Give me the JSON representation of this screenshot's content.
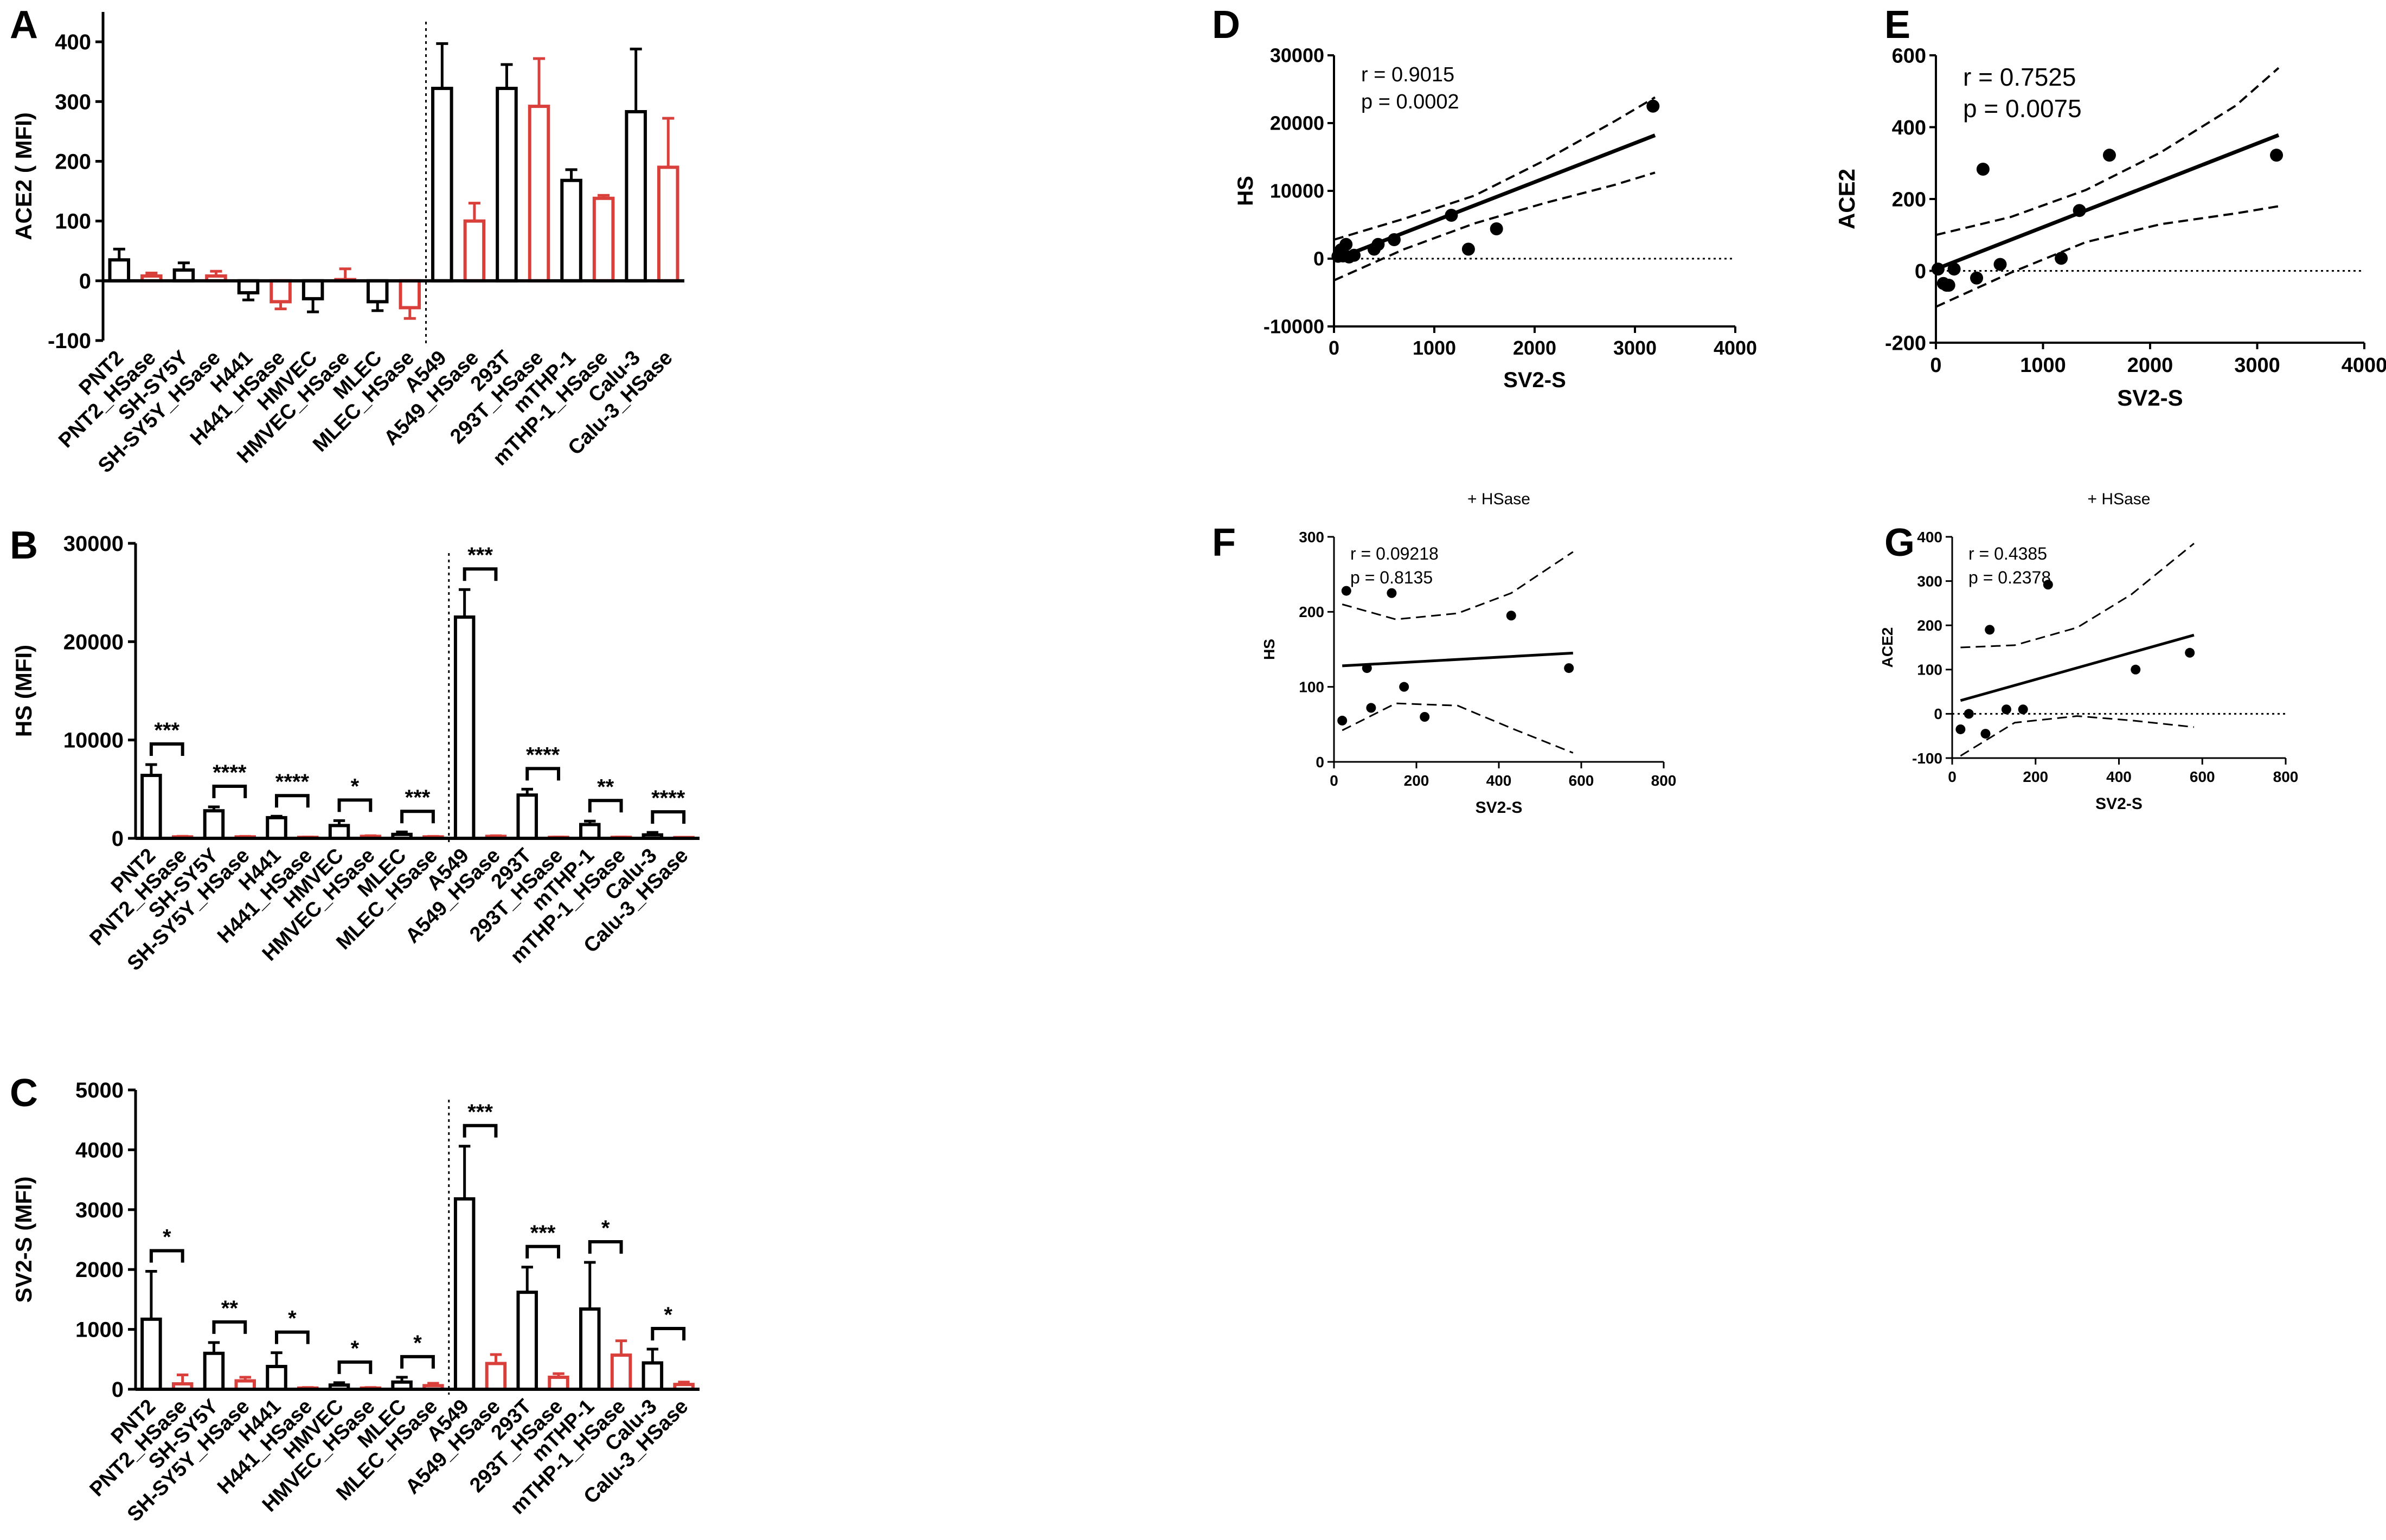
{
  "colors": {
    "control": "#000000",
    "hsase": "#d9403b"
  },
  "chart_data": [
    {
      "id": "A",
      "panel_label": "A",
      "type": "bar",
      "ylabel": "ACE2 ( MFI)",
      "ylim": [
        -100,
        450
      ],
      "yticks": [
        -100,
        0,
        100,
        200,
        300,
        400
      ],
      "divider_after_index": 9,
      "categories": [
        "PNT2",
        "PNT2_HSase",
        "SH-SY5Y",
        "SH-SY5Y_HSase",
        "H441",
        "H441_HSase",
        "HMVEC",
        "HMVEC_HSase",
        "MLEC",
        "MLEC_HSase",
        "A549",
        "A549_HSase",
        "293T",
        "293T_HSase",
        "mTHP-1",
        "mTHP-1_HSase",
        "Calu-3",
        "Calu-3_HSase"
      ],
      "values": [
        35,
        8,
        18,
        8,
        -20,
        -35,
        -30,
        2,
        -35,
        -45,
        322,
        100,
        322,
        292,
        168,
        138,
        283,
        190
      ],
      "errors": [
        18,
        5,
        12,
        8,
        12,
        12,
        22,
        18,
        15,
        18,
        75,
        30,
        40,
        80,
        18,
        5,
        105,
        82
      ],
      "significance": []
    },
    {
      "id": "B",
      "panel_label": "B",
      "type": "bar",
      "ylabel": "HS (MFI)",
      "ylim": [
        0,
        30000
      ],
      "yticks": [
        0,
        10000,
        20000,
        30000
      ],
      "divider_after_index": 9,
      "categories": [
        "PNT2",
        "PNT2_HSase",
        "SH-SY5Y",
        "SH-SY5Y_HSase",
        "H441",
        "H441_HSase",
        "HMVEC",
        "HMVEC_HSase",
        "MLEC",
        "MLEC_HSase",
        "A549",
        "A549_HSase",
        "293T",
        "293T_HSase",
        "mTHP-1",
        "mTHP-1_HSase",
        "Calu-3",
        "Calu-3_HSase"
      ],
      "values": [
        6400,
        150,
        2800,
        150,
        2100,
        100,
        1300,
        200,
        400,
        150,
        22500,
        200,
        4400,
        100,
        1400,
        100,
        350,
        80
      ],
      "errors": [
        1100,
        60,
        400,
        50,
        150,
        40,
        500,
        60,
        250,
        50,
        2800,
        60,
        600,
        40,
        350,
        40,
        250,
        30
      ],
      "significance": [
        {
          "pair": [
            0,
            1
          ],
          "label": "***"
        },
        {
          "pair": [
            2,
            3
          ],
          "label": "****"
        },
        {
          "pair": [
            4,
            5
          ],
          "label": "****"
        },
        {
          "pair": [
            6,
            7
          ],
          "label": "*"
        },
        {
          "pair": [
            8,
            9
          ],
          "label": "***"
        },
        {
          "pair": [
            10,
            11
          ],
          "label": "***"
        },
        {
          "pair": [
            12,
            13
          ],
          "label": "****"
        },
        {
          "pair": [
            14,
            15
          ],
          "label": "**"
        },
        {
          "pair": [
            16,
            17
          ],
          "label": "****"
        }
      ]
    },
    {
      "id": "C",
      "panel_label": "C",
      "type": "bar",
      "ylabel": "SV2-S (MFI)",
      "ylim": [
        0,
        5000
      ],
      "yticks": [
        0,
        1000,
        2000,
        3000,
        4000,
        5000
      ],
      "divider_after_index": 9,
      "categories": [
        "PNT2",
        "PNT2_HSase",
        "SH-SY5Y",
        "SH-SY5Y_HSase",
        "H441",
        "H441_HSase",
        "HMVEC",
        "HMVEC_HSase",
        "MLEC",
        "MLEC_HSase",
        "A549",
        "A549_HSase",
        "293T",
        "293T_HSase",
        "mTHP-1",
        "mTHP-1_HSase",
        "Calu-3",
        "Calu-3_HSase"
      ],
      "values": [
        1170,
        90,
        600,
        140,
        380,
        20,
        70,
        20,
        120,
        60,
        3180,
        430,
        1620,
        200,
        1340,
        570,
        440,
        80
      ],
      "errors": [
        800,
        150,
        180,
        60,
        230,
        10,
        40,
        10,
        80,
        40,
        880,
        150,
        420,
        60,
        780,
        240,
        230,
        40
      ],
      "significance": [
        {
          "pair": [
            0,
            1
          ],
          "label": "*"
        },
        {
          "pair": [
            2,
            3
          ],
          "label": "**"
        },
        {
          "pair": [
            4,
            5
          ],
          "label": "*"
        },
        {
          "pair": [
            6,
            7
          ],
          "label": "*"
        },
        {
          "pair": [
            8,
            9
          ],
          "label": "*"
        },
        {
          "pair": [
            10,
            11
          ],
          "label": "***"
        },
        {
          "pair": [
            12,
            13
          ],
          "label": "***"
        },
        {
          "pair": [
            14,
            15
          ],
          "label": "*"
        },
        {
          "pair": [
            16,
            17
          ],
          "label": "*"
        }
      ]
    },
    {
      "id": "D",
      "panel_label": "D",
      "type": "scatter",
      "title": "",
      "xlabel": "SV2-S",
      "ylabel": "HS",
      "xlim": [
        0,
        4000
      ],
      "ylim": [
        -10000,
        30000
      ],
      "xticks": [
        0,
        1000,
        2000,
        3000,
        4000
      ],
      "yticks": [
        -10000,
        0,
        10000,
        20000,
        30000
      ],
      "annot_r": "r = 0.9015",
      "annot_p": "p = 0.0002",
      "points": [
        [
          40,
          350
        ],
        [
          70,
          1300
        ],
        [
          90,
          400
        ],
        [
          120,
          2100
        ],
        [
          150,
          250
        ],
        [
          200,
          500
        ],
        [
          400,
          1400
        ],
        [
          440,
          2100
        ],
        [
          600,
          2800
        ],
        [
          1170,
          6400
        ],
        [
          1340,
          1400
        ],
        [
          1620,
          4400
        ],
        [
          3180,
          22500
        ]
      ],
      "fit": [
        [
          0,
          -200
        ],
        [
          3200,
          18200
        ]
      ],
      "ci_upper": [
        [
          0,
          2800
        ],
        [
          700,
          5900
        ],
        [
          1400,
          9300
        ],
        [
          2100,
          14500
        ],
        [
          2800,
          20300
        ],
        [
          3200,
          23800
        ]
      ],
      "ci_lower": [
        [
          0,
          -3200
        ],
        [
          700,
          1400
        ],
        [
          1400,
          5200
        ],
        [
          2100,
          8200
        ],
        [
          2800,
          10900
        ],
        [
          3200,
          12700
        ]
      ]
    },
    {
      "id": "E",
      "panel_label": "E",
      "type": "scatter",
      "title": "",
      "xlabel": "SV2-S",
      "ylabel": "ACE2",
      "xlim": [
        0,
        4000
      ],
      "ylim": [
        -200,
        600
      ],
      "xticks": [
        0,
        1000,
        2000,
        3000,
        4000
      ],
      "yticks": [
        -200,
        0,
        200,
        400,
        600
      ],
      "annot_r": "r = 0.7525",
      "annot_p": "p = 0.0075",
      "points": [
        [
          20,
          5
        ],
        [
          70,
          -35
        ],
        [
          100,
          -40
        ],
        [
          120,
          -40
        ],
        [
          170,
          5
        ],
        [
          380,
          -20
        ],
        [
          440,
          283
        ],
        [
          600,
          18
        ],
        [
          1170,
          35
        ],
        [
          1340,
          168
        ],
        [
          1620,
          322
        ],
        [
          3180,
          322
        ]
      ],
      "fit": [
        [
          0,
          5
        ],
        [
          3200,
          378
        ]
      ],
      "ci_upper": [
        [
          0,
          100
        ],
        [
          700,
          150
        ],
        [
          1400,
          225
        ],
        [
          2100,
          330
        ],
        [
          2800,
          460
        ],
        [
          3200,
          565
        ]
      ],
      "ci_lower": [
        [
          0,
          -100
        ],
        [
          700,
          -5
        ],
        [
          1400,
          80
        ],
        [
          2100,
          130
        ],
        [
          2800,
          160
        ],
        [
          3200,
          180
        ]
      ]
    },
    {
      "id": "F",
      "panel_label": "F",
      "type": "scatter",
      "title": "+ HSase",
      "xlabel": "SV2-S",
      "ylabel": "HS",
      "xlim": [
        0,
        800
      ],
      "ylim": [
        0,
        300
      ],
      "xticks": [
        0,
        200,
        400,
        600,
        800
      ],
      "yticks": [
        0,
        100,
        200,
        300
      ],
      "annot_r": "r = 0.09218",
      "annot_p": "p = 0.8135",
      "points": [
        [
          20,
          55
        ],
        [
          30,
          228
        ],
        [
          80,
          125
        ],
        [
          90,
          72
        ],
        [
          140,
          225
        ],
        [
          170,
          100
        ],
        [
          220,
          60
        ],
        [
          430,
          195
        ],
        [
          570,
          125
        ]
      ],
      "fit": [
        [
          20,
          128
        ],
        [
          580,
          145
        ]
      ],
      "ci_upper": [
        [
          20,
          210
        ],
        [
          150,
          190
        ],
        [
          300,
          198
        ],
        [
          430,
          225
        ],
        [
          580,
          280
        ]
      ],
      "ci_lower": [
        [
          20,
          42
        ],
        [
          150,
          78
        ],
        [
          300,
          75
        ],
        [
          430,
          45
        ],
        [
          580,
          12
        ]
      ]
    },
    {
      "id": "G",
      "panel_label": "G",
      "type": "scatter",
      "title": "+ HSase",
      "xlabel": "SV2-S",
      "ylabel": "ACE2",
      "xlim": [
        0,
        800
      ],
      "ylim": [
        -100,
        400
      ],
      "xticks": [
        0,
        200,
        400,
        600,
        800
      ],
      "yticks": [
        -100,
        0,
        100,
        200,
        300,
        400
      ],
      "annot_r": "r = 0.4385",
      "annot_p": "p = 0.2378",
      "points": [
        [
          20,
          -35
        ],
        [
          40,
          0
        ],
        [
          80,
          -45
        ],
        [
          90,
          190
        ],
        [
          130,
          10
        ],
        [
          170,
          10
        ],
        [
          230,
          292
        ],
        [
          440,
          100
        ],
        [
          570,
          138
        ]
      ],
      "fit": [
        [
          20,
          30
        ],
        [
          580,
          178
        ]
      ],
      "ci_upper": [
        [
          20,
          150
        ],
        [
          150,
          155
        ],
        [
          300,
          195
        ],
        [
          430,
          270
        ],
        [
          580,
          385
        ]
      ],
      "ci_lower": [
        [
          20,
          -95
        ],
        [
          150,
          -20
        ],
        [
          300,
          -5
        ],
        [
          430,
          -15
        ],
        [
          580,
          -30
        ]
      ]
    }
  ]
}
